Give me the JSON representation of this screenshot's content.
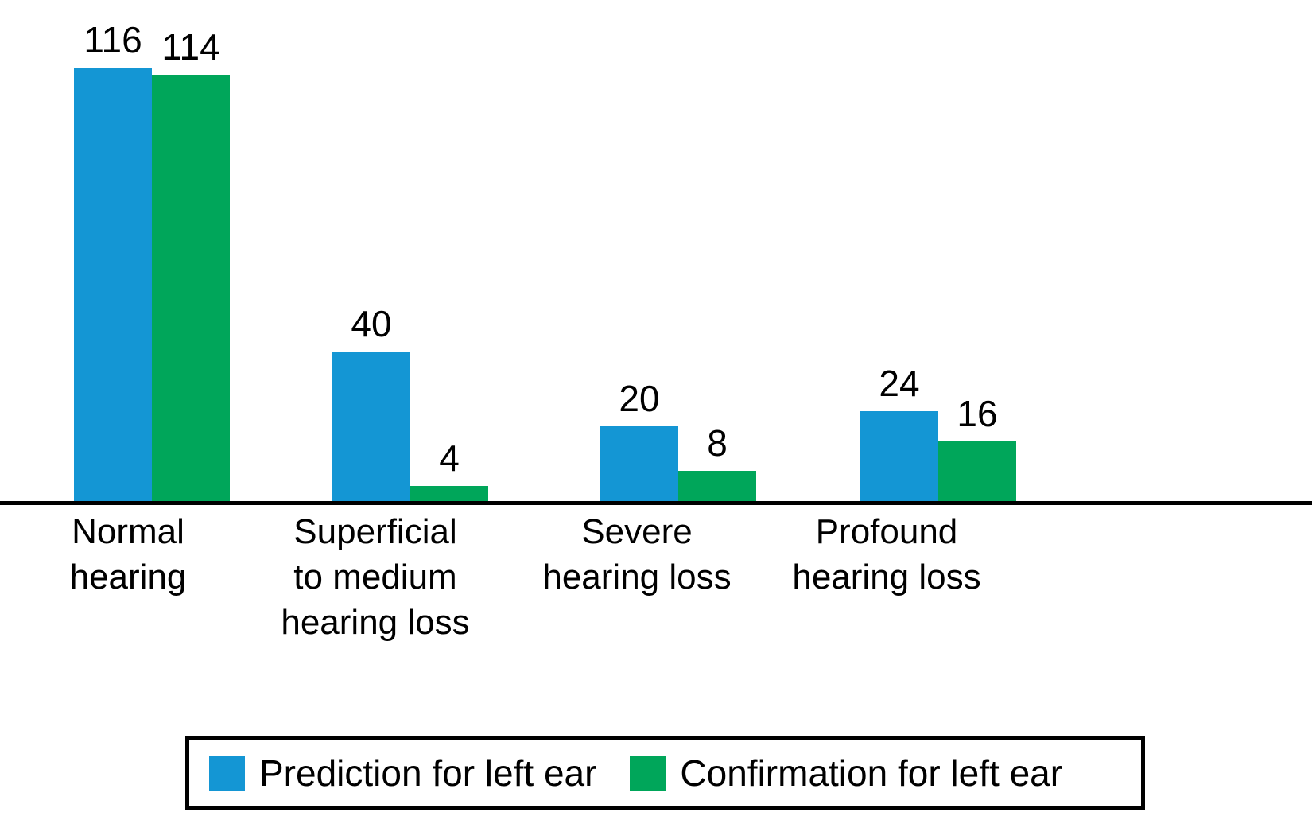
{
  "chart_data": {
    "type": "bar",
    "categories": [
      "Normal hearing",
      "Superficial to medium hearing loss",
      "Severe hearing loss",
      "Profound hearing loss"
    ],
    "category_lines": [
      [
        "Normal",
        "hearing"
      ],
      [
        "Superficial",
        "to medium",
        "hearing loss"
      ],
      [
        "Severe",
        "hearing loss"
      ],
      [
        "Profound",
        "hearing loss"
      ]
    ],
    "series": [
      {
        "name": "Prediction for left ear",
        "color": "#1496d4",
        "values": [
          116,
          40,
          20,
          24
        ]
      },
      {
        "name": "Confirmation for left ear",
        "color": "#00a65a",
        "values": [
          114,
          4,
          8,
          16
        ]
      }
    ],
    "title": "",
    "xlabel": "",
    "ylabel": "",
    "ylim": [
      0,
      120
    ],
    "grid": false,
    "value_labels_shown": true,
    "legend_position": "bottom",
    "axis_line_color": "#000000",
    "background_color": "#ffffff"
  }
}
